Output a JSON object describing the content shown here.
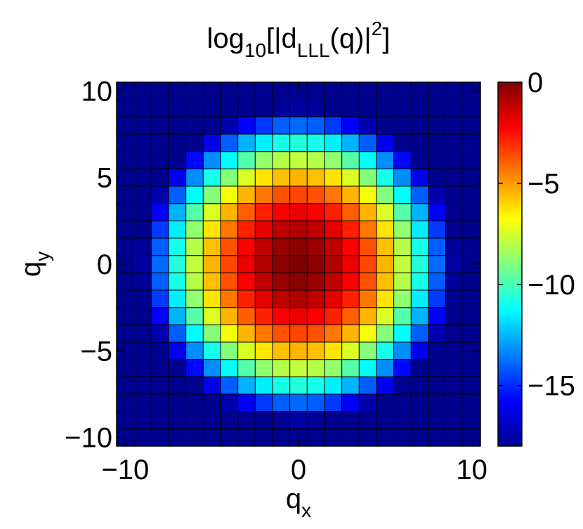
{
  "chart_data": {
    "type": "heatmap",
    "title": {
      "base": "log",
      "base_sub": "10",
      "open": "[|d",
      "d_sub": "LLL",
      "mid": "(q)|",
      "exponent": "2",
      "close": "]"
    },
    "xlabel": {
      "main": "q",
      "sub": "x"
    },
    "ylabel": {
      "main": "q",
      "sub": "y"
    },
    "x_range": [
      -10,
      10
    ],
    "y_range": [
      -10,
      10
    ],
    "xlim": [
      -10.5,
      10.5
    ],
    "ylim": [
      -10.5,
      10.5
    ],
    "x_ticks": [
      -10,
      0,
      10
    ],
    "x_tick_labels": [
      "−10",
      "0",
      "10"
    ],
    "y_ticks": [
      -10,
      -5,
      0,
      5,
      10
    ],
    "y_tick_labels": [
      "−10",
      "−5",
      "0",
      "5",
      "10"
    ],
    "grid_step": 1,
    "value_formula": "-(qx^2 + qy^2) / (2 * ln 10)",
    "colorbar": {
      "clim": [
        -18,
        0
      ],
      "ticks": [
        0,
        -5,
        -10,
        -15
      ],
      "tick_labels": [
        "0",
        "−5",
        "−10",
        "−15"
      ],
      "colormap": "jet"
    },
    "colormap_stops": [
      {
        "pos": 0.0,
        "color": "#00008f"
      },
      {
        "pos": 0.125,
        "color": "#0000ff"
      },
      {
        "pos": 0.375,
        "color": "#00ffff"
      },
      {
        "pos": 0.625,
        "color": "#ffff00"
      },
      {
        "pos": 0.875,
        "color": "#ff0000"
      },
      {
        "pos": 1.0,
        "color": "#800000"
      }
    ]
  }
}
